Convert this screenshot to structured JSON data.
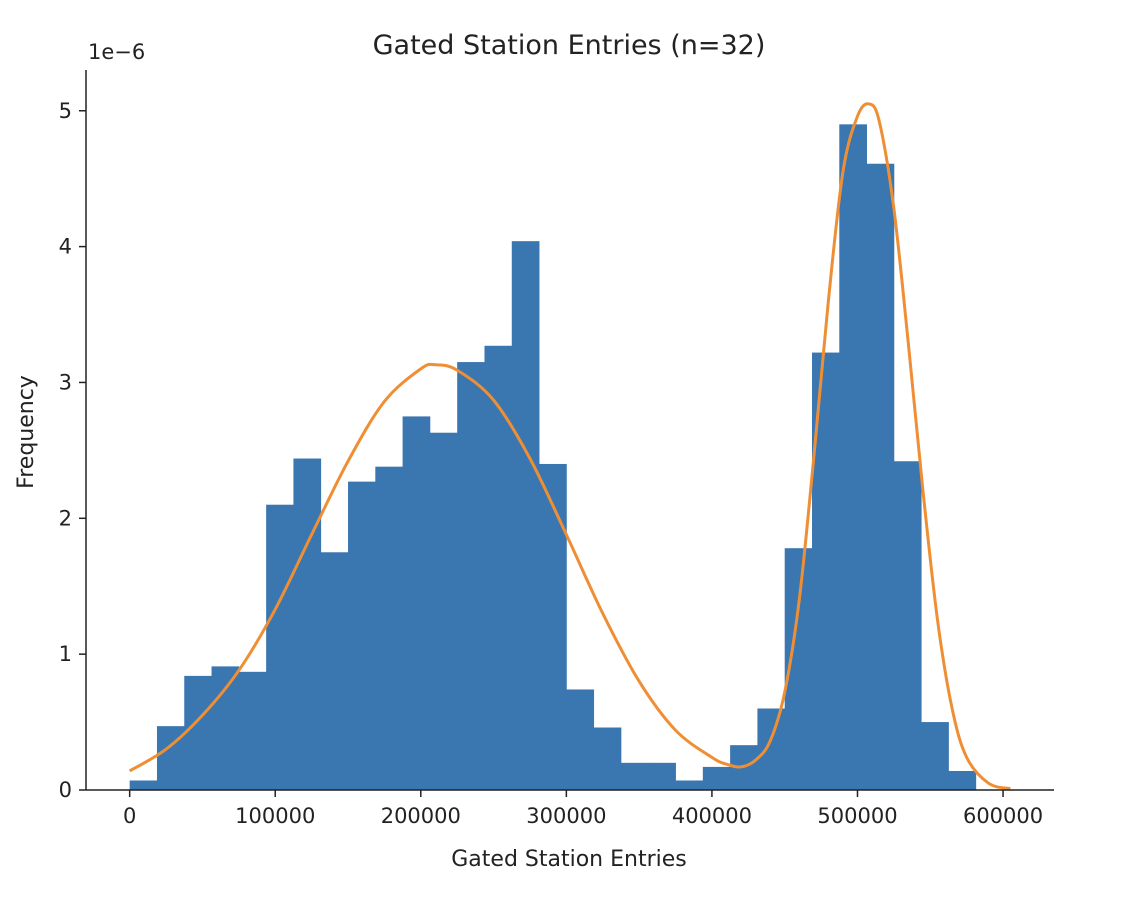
{
  "chart_data": {
    "type": "histogram",
    "title": "Gated Station Entries (n=32)",
    "xlabel": "Gated Station Entries",
    "ylabel": "Frequency",
    "y_offset_label": "1e−6",
    "y_scale_exponent": -6,
    "xlim": [
      -30000,
      635000
    ],
    "ylim": [
      0,
      5.3
    ],
    "x_ticks": [
      0,
      100000,
      200000,
      300000,
      400000,
      500000,
      600000
    ],
    "x_tick_labels": [
      "0",
      "100000",
      "200000",
      "300000",
      "400000",
      "500000",
      "600000"
    ],
    "y_ticks": [
      0,
      1,
      2,
      3,
      4,
      5
    ],
    "y_tick_labels": [
      "0",
      "1",
      "2",
      "3",
      "4",
      "5"
    ],
    "bin_edges": [
      0,
      18750,
      37500,
      56250,
      75000,
      93750,
      112500,
      131250,
      150000,
      168750,
      187500,
      206250,
      225000,
      243750,
      262500,
      281250,
      300000,
      318750,
      337500,
      356250,
      375000,
      393750,
      412500,
      431250,
      450000,
      468750,
      487500,
      506250,
      525000,
      543750,
      562500,
      581250
    ],
    "bin_heights": [
      0.07,
      0.47,
      0.84,
      0.91,
      0.87,
      2.1,
      2.44,
      1.75,
      2.27,
      2.38,
      2.75,
      2.63,
      3.15,
      3.27,
      4.04,
      2.4,
      0.74,
      0.46,
      0.2,
      0.2,
      0.07,
      0.17,
      0.33,
      0.6,
      1.78,
      3.22,
      4.9,
      4.61,
      2.42,
      0.5,
      0.14
    ],
    "bar_color": "#3a76b0",
    "curve": {
      "type": "kde",
      "color": "#ef8f35",
      "x": [
        0,
        25000,
        50000,
        75000,
        100000,
        125000,
        150000,
        175000,
        200000,
        210000,
        225000,
        250000,
        275000,
        300000,
        325000,
        350000,
        375000,
        400000,
        410000,
        420000,
        430000,
        440000,
        450000,
        460000,
        470000,
        480000,
        490000,
        500000,
        508000,
        515000,
        525000,
        535000,
        545000,
        555000,
        565000,
        575000,
        590000,
        605000
      ],
      "y": [
        0.14,
        0.3,
        0.55,
        0.88,
        1.33,
        1.88,
        2.42,
        2.86,
        3.1,
        3.13,
        3.09,
        2.87,
        2.44,
        1.88,
        1.3,
        0.8,
        0.44,
        0.24,
        0.19,
        0.17,
        0.22,
        0.36,
        0.72,
        1.4,
        2.45,
        3.6,
        4.55,
        4.96,
        5.05,
        4.92,
        4.28,
        3.28,
        2.2,
        1.25,
        0.6,
        0.24,
        0.05,
        0.01
      ]
    }
  }
}
